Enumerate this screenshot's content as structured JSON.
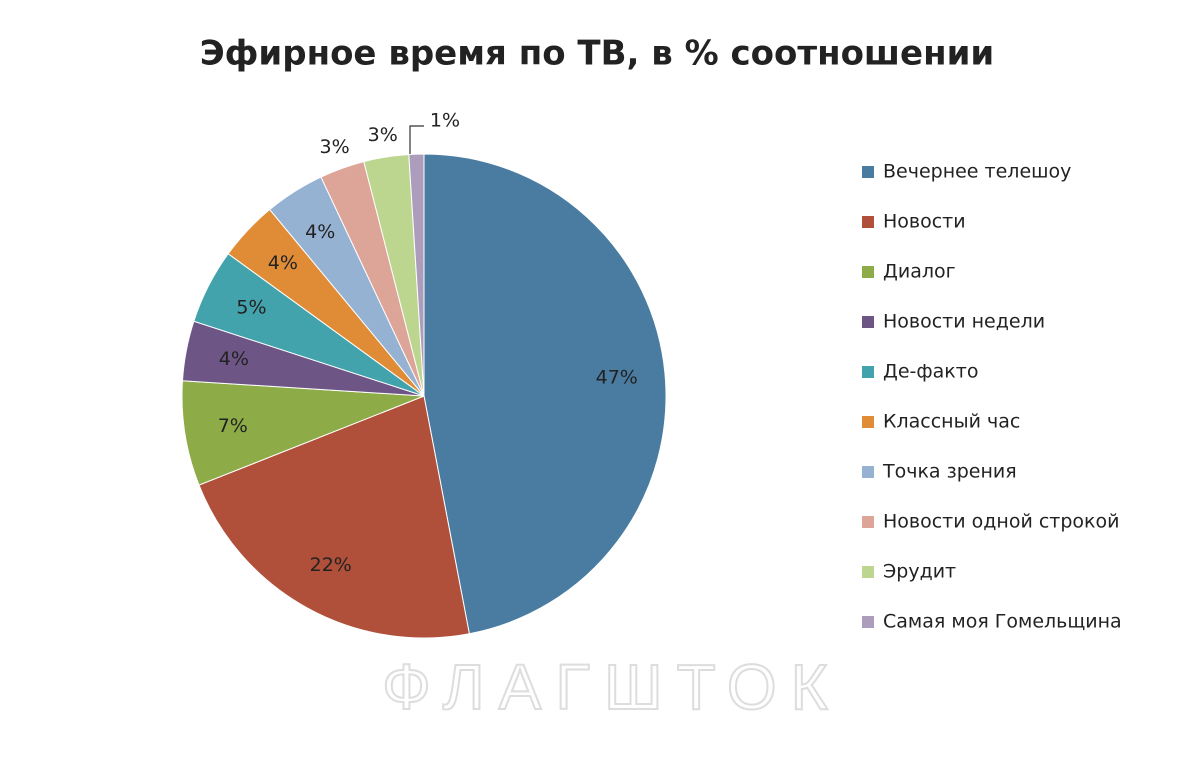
{
  "chart_data": {
    "type": "pie",
    "title": "Эфирное время по ТВ, в % соотношении",
    "categories": [
      "Вечернее  телешоу",
      "Новости",
      "Диалог",
      "Новости недели",
      "Де-факто",
      "Классный час",
      "Точка зрения",
      "Новости одной строкой",
      "Эрудит",
      "Самая моя Гомельщина"
    ],
    "values": [
      47,
      22,
      7,
      4,
      5,
      4,
      4,
      3,
      3,
      1
    ],
    "value_labels": [
      "47%",
      "22%",
      "7%",
      "4%",
      "5%",
      "4%",
      "4%",
      "3%",
      "3%",
      "1%"
    ],
    "colors": [
      "#4a7ba1",
      "#b0503a",
      "#8dab46",
      "#6d5586",
      "#43a3ad",
      "#e08c37",
      "#95b2d3",
      "#dca597",
      "#bcd58f",
      "#ac9dbd"
    ],
    "legend": "right",
    "watermark": "ФЛАГШТОК"
  }
}
